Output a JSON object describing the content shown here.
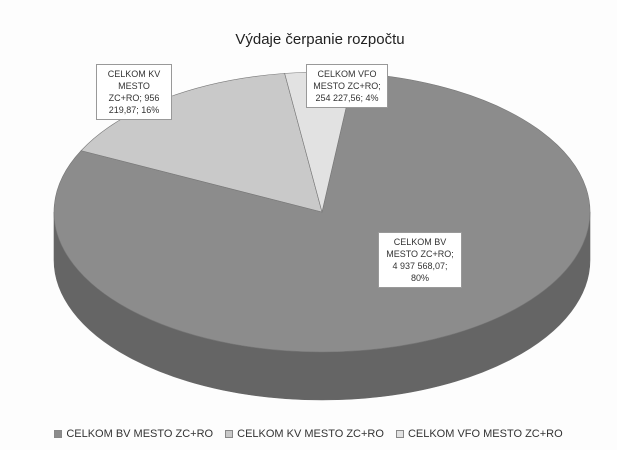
{
  "chart_data": {
    "type": "pie",
    "title": "Výdaje čerpanie rozpočtu",
    "categories": [
      "CELKOM BV MESTO ZC+RO",
      "CELKOM KV MESTO ZC+RO",
      "CELKOM VFO MESTO ZC+RO"
    ],
    "values": [
      4937568.07,
      956219.87,
      254227.56
    ],
    "value_labels": [
      "CELKOM BV MESTO ZC+RO; 4 937 568,07; 80%",
      "CELKOM KV MESTO ZC+RO; 956 219,87; 16%",
      "CELKOM VFO MESTO ZC+RO; 254 227,56; 4%"
    ],
    "colors": [
      "#8c8c8c",
      "#c9c9c9",
      "#e2e2e2"
    ],
    "legend": "bottom"
  }
}
